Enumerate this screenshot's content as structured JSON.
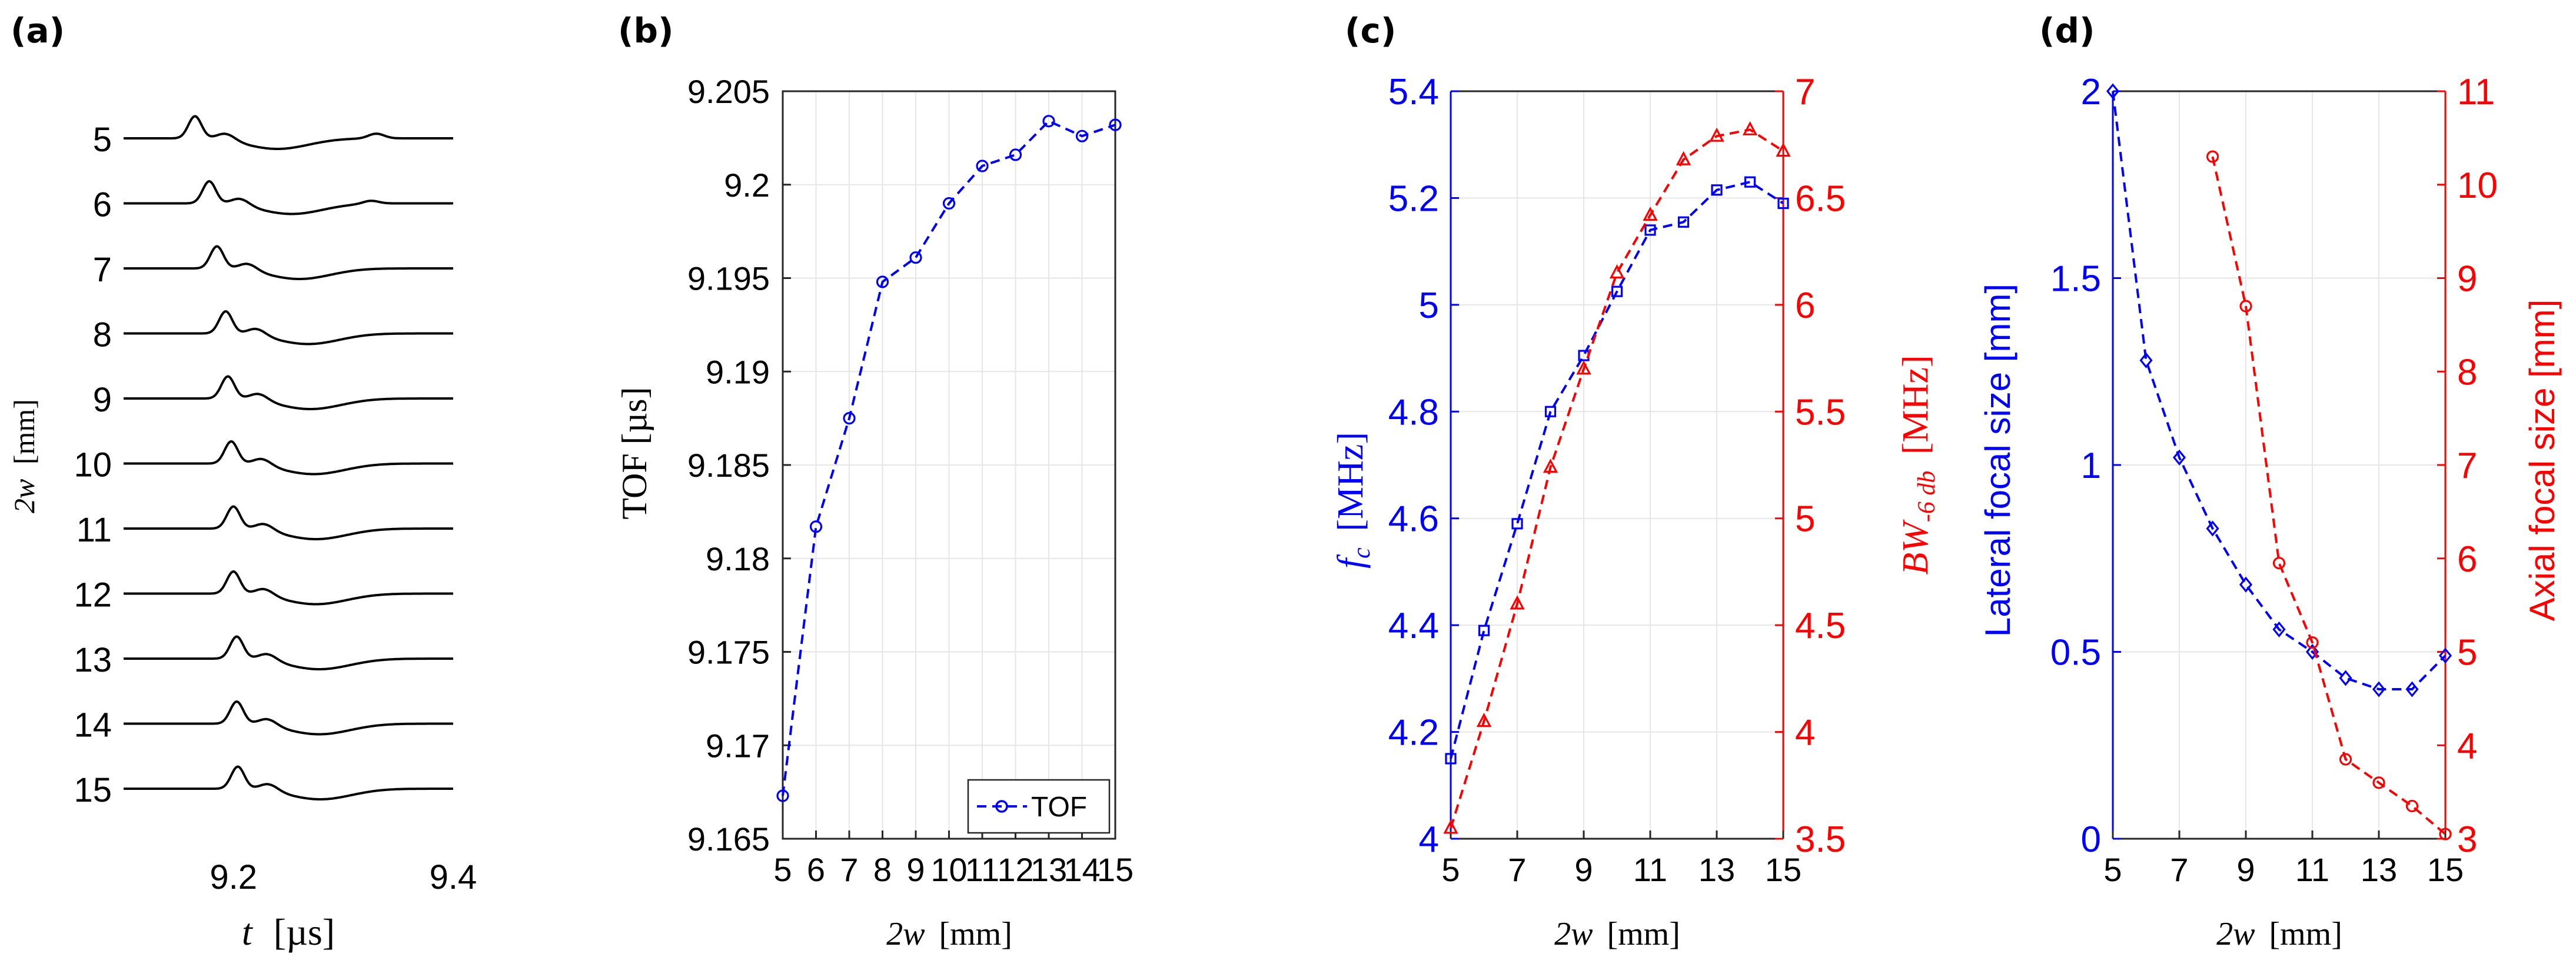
{
  "colors": {
    "blue": "#0000ff",
    "red": "#ff0000",
    "black": "#000000",
    "grid": "#e6e6e6",
    "axis": "#262626"
  },
  "chart_data": [
    {
      "panel": "(a)",
      "type": "line",
      "title": "",
      "xlabel_var": "t",
      "xlabel_unit": "[µs]",
      "ylabel_var": "2w",
      "ylabel_unit": "[mm]",
      "xlim": [
        9.1,
        9.4
      ],
      "xticks": [
        "9.2",
        "9.4"
      ],
      "xtick_values": [
        9.2,
        9.4
      ],
      "traces": [
        "5",
        "6",
        "7",
        "8",
        "9",
        "10",
        "11",
        "12",
        "13",
        "14",
        "15"
      ],
      "pulse_peak_times": [
        9.165,
        9.178,
        9.185,
        9.193,
        9.195,
        9.198,
        9.2,
        9.2,
        9.203,
        9.203,
        9.204
      ]
    },
    {
      "panel": "(b)",
      "type": "line",
      "xlabel_var": "2w",
      "xlabel_unit": "[mm]",
      "ylabel": "TOF [µs]",
      "xlim": [
        5,
        15
      ],
      "ylim": [
        9.165,
        9.205
      ],
      "xticks": [
        "5",
        "6",
        "7",
        "8",
        "9",
        "10",
        "11",
        "12",
        "13",
        "14",
        "15"
      ],
      "yticks": [
        "9.165",
        "9.17",
        "9.175",
        "9.18",
        "9.185",
        "9.19",
        "9.195",
        "9.2",
        "9.205"
      ],
      "ytick_values": [
        9.165,
        9.17,
        9.175,
        9.18,
        9.185,
        9.19,
        9.195,
        9.2,
        9.205
      ],
      "x": [
        5,
        6,
        7,
        8,
        9,
        10,
        11,
        12,
        13,
        14,
        15
      ],
      "series": [
        {
          "name": "TOF",
          "color": "blue",
          "marker": "circle",
          "values": [
            9.1673,
            9.1817,
            9.1875,
            9.1948,
            9.1961,
            9.199,
            9.201,
            9.2016,
            9.2034,
            9.2026,
            9.2032
          ]
        }
      ],
      "legend": {
        "position": "bottom-right",
        "label": "TOF"
      }
    },
    {
      "panel": "(c)",
      "type": "line",
      "xlabel_var": "2w",
      "xlabel_unit": "[mm]",
      "ylabel_left_var": "f",
      "ylabel_left_sub": "c",
      "ylabel_left_unit": "[MHz]",
      "ylabel_right_var": "BW",
      "ylabel_right_sub": "-6 db",
      "ylabel_right_unit": "[MHz]",
      "xlim": [
        5,
        15
      ],
      "ylim_left": [
        4,
        5.4
      ],
      "ylim_right": [
        3.5,
        7
      ],
      "xticks": [
        "5",
        "7",
        "9",
        "11",
        "13",
        "15"
      ],
      "xtick_values": [
        5,
        7,
        9,
        11,
        13,
        15
      ],
      "yticks_left": [
        "4",
        "4.2",
        "4.4",
        "4.6",
        "4.8",
        "5",
        "5.2",
        "5.4"
      ],
      "ytick_left_values": [
        4,
        4.2,
        4.4,
        4.6,
        4.8,
        5,
        5.2,
        5.4
      ],
      "yticks_right": [
        "3.5",
        "4",
        "4.5",
        "5",
        "5.5",
        "6",
        "6.5",
        "7"
      ],
      "ytick_right_values": [
        3.5,
        4,
        4.5,
        5,
        5.5,
        6,
        6.5,
        7
      ],
      "x": [
        5,
        6,
        7,
        8,
        9,
        10,
        11,
        12,
        13,
        14,
        15
      ],
      "series": [
        {
          "name": "fc",
          "axis": "left",
          "color": "blue",
          "marker": "square",
          "values": [
            4.15,
            4.39,
            4.59,
            4.8,
            4.905,
            5.025,
            5.14,
            5.155,
            5.215,
            5.23,
            5.19
          ]
        },
        {
          "name": "BW-6db",
          "axis": "right",
          "color": "red",
          "marker": "triangle",
          "values": [
            3.55,
            4.05,
            4.6,
            5.24,
            5.7,
            6.15,
            6.42,
            6.68,
            6.79,
            6.82,
            6.72
          ]
        }
      ]
    },
    {
      "panel": "(d)",
      "type": "line",
      "xlabel_var": "2w",
      "xlabel_unit": "[mm]",
      "ylabel_left": "Lateral focal size [mm]",
      "ylabel_right": "Axial focal size [mm]",
      "xlim": [
        5,
        15
      ],
      "ylim_left": [
        0,
        2
      ],
      "ylim_right": [
        3,
        11
      ],
      "xticks": [
        "5",
        "7",
        "9",
        "11",
        "13",
        "15"
      ],
      "xtick_values": [
        5,
        7,
        9,
        11,
        13,
        15
      ],
      "yticks_left": [
        "0",
        "0.5",
        "1",
        "1.5",
        "2"
      ],
      "ytick_left_values": [
        0,
        0.5,
        1,
        1.5,
        2
      ],
      "yticks_right": [
        "3",
        "4",
        "5",
        "6",
        "7",
        "8",
        "9",
        "10",
        "11"
      ],
      "ytick_right_values": [
        3,
        4,
        5,
        6,
        7,
        8,
        9,
        10,
        11
      ],
      "series": [
        {
          "name": "Lateral focal size",
          "axis": "left",
          "color": "blue",
          "marker": "diamond",
          "x": [
            5,
            6,
            7,
            8,
            9,
            10,
            11,
            12,
            13,
            14,
            15
          ],
          "values": [
            2.0,
            1.28,
            1.02,
            0.83,
            0.68,
            0.56,
            0.5,
            0.43,
            0.4,
            0.4,
            0.49
          ]
        },
        {
          "name": "Axial focal size",
          "axis": "right",
          "color": "red",
          "marker": "circle",
          "x": [
            8,
            9,
            10,
            11,
            12,
            13,
            14,
            15
          ],
          "values": [
            10.3,
            8.7,
            5.95,
            5.1,
            3.85,
            3.6,
            3.35,
            3.05
          ]
        }
      ]
    }
  ]
}
